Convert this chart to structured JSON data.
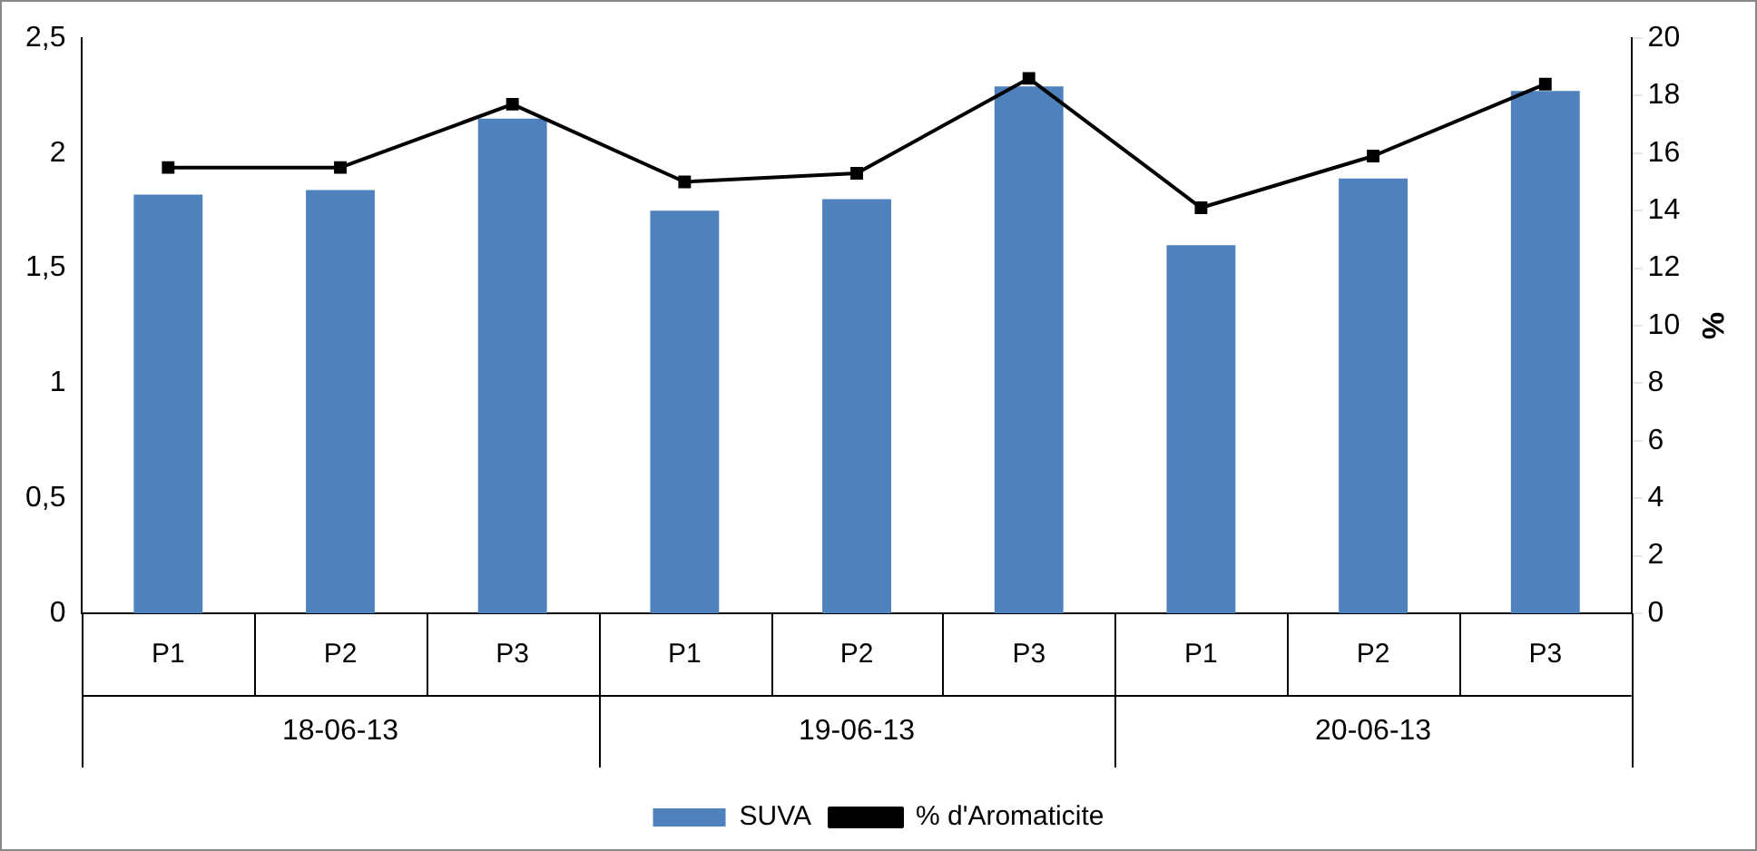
{
  "chart_data": {
    "type": "bar",
    "categories": [
      "P1",
      "P2",
      "P3",
      "P1",
      "P2",
      "P3",
      "P1",
      "P2",
      "P3"
    ],
    "annotations": [
      "18-06-13",
      "19-06-13",
      "20-06-13"
    ],
    "series": [
      {
        "name": "SUVA",
        "color": "#4f81bd",
        "values": [
          1.82,
          1.84,
          2.15,
          1.75,
          1.8,
          2.29,
          1.6,
          1.89,
          2.27
        ]
      },
      {
        "name": "% d'Aromaticite",
        "type": "line",
        "axis": "y2",
        "color": "#000000",
        "values": [
          15.5,
          15.5,
          17.7,
          15.0,
          15.3,
          18.6,
          14.1,
          15.9,
          18.4
        ]
      }
    ],
    "ylim": [
      0,
      2.5
    ],
    "yticks": [
      {
        "value": 0,
        "label": "0"
      },
      {
        "value": 0.5,
        "label": "0,5"
      },
      {
        "value": 1,
        "label": "1"
      },
      {
        "value": 1.5,
        "label": "1,5"
      },
      {
        "value": 2,
        "label": "2"
      },
      {
        "value": 2.5,
        "label": "2,5"
      }
    ],
    "y2lim": [
      0,
      20
    ],
    "y2ticks": [
      0,
      2,
      4,
      6,
      8,
      10,
      12,
      14,
      16,
      18,
      20
    ],
    "y2label": "%",
    "marker": "square",
    "grid": false,
    "legend": "bottom"
  }
}
